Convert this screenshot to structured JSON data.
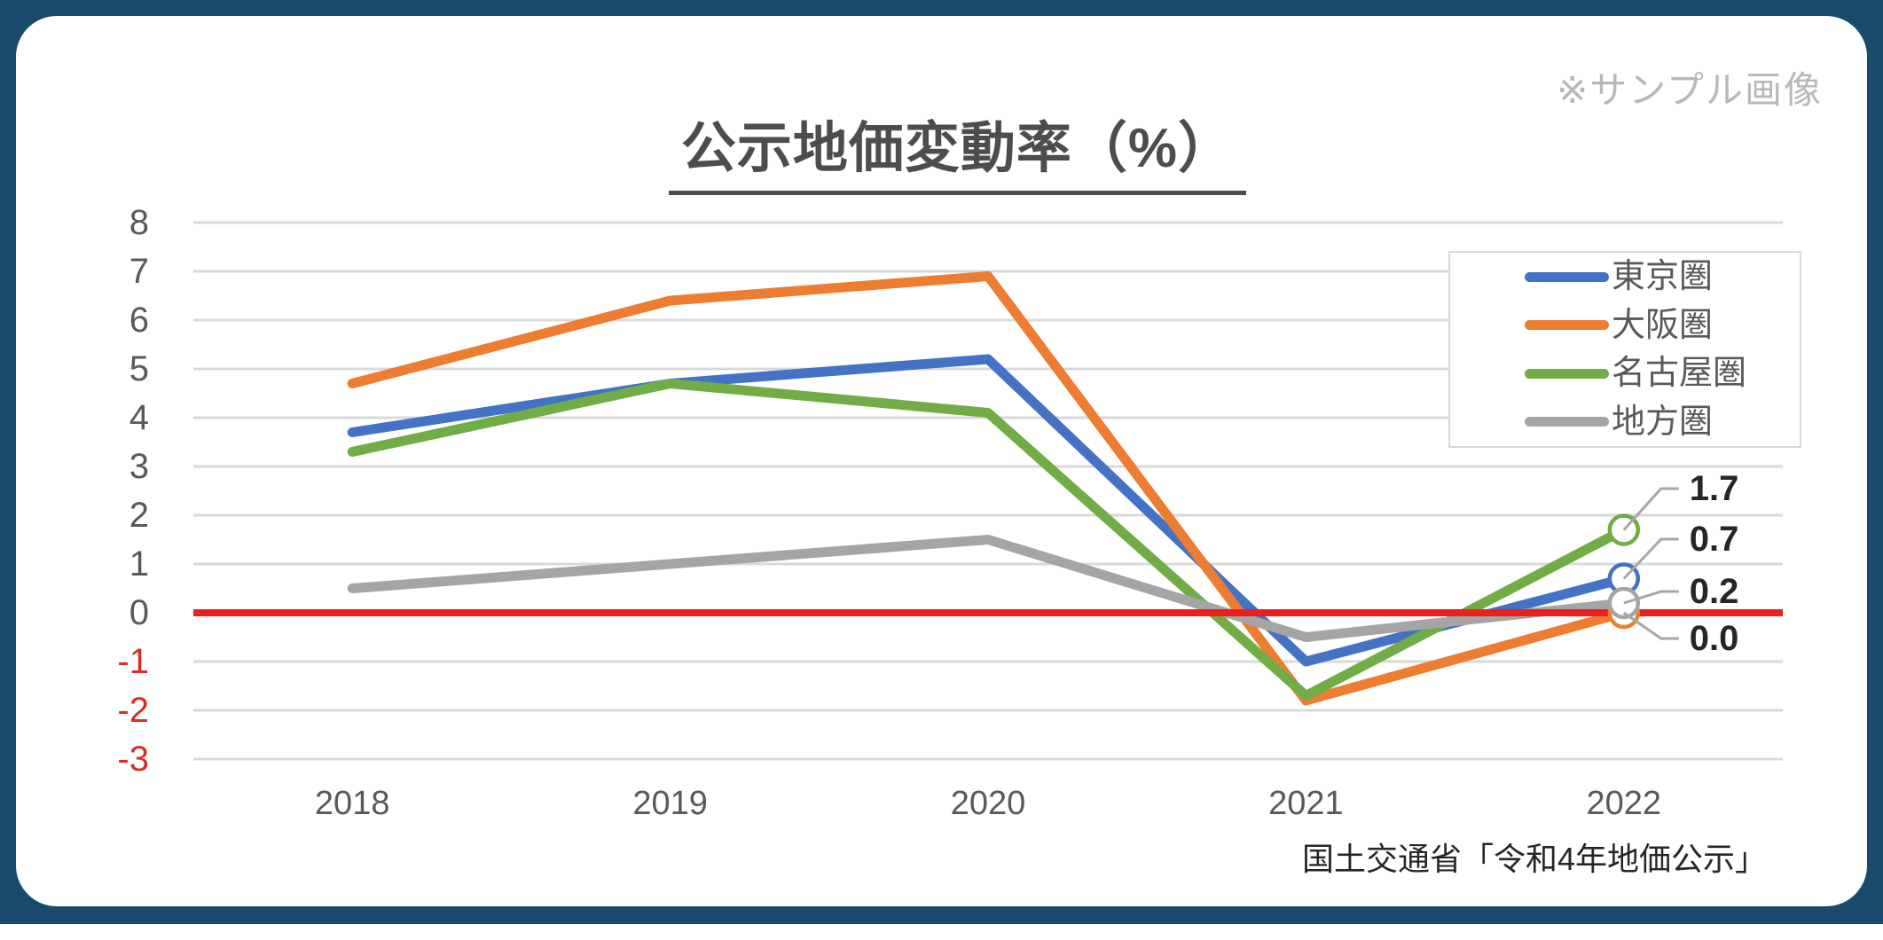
{
  "frame": {
    "border_color": "#174A6B",
    "panel_color": "#FFFFFF"
  },
  "watermark": {
    "text": "※サンプル画像",
    "color": "#B8B8B8"
  },
  "title": {
    "text": "公示地価変動率（%）",
    "color": "#4D4D4D"
  },
  "source": {
    "text": "国土交通省「令和4年地価公示」",
    "color": "#262626"
  },
  "chart_data": {
    "type": "line",
    "title": "公示地価変動率（%）",
    "xlabel": "",
    "ylabel": "",
    "categories": [
      "2018",
      "2019",
      "2020",
      "2021",
      "2022"
    ],
    "series": [
      {
        "name": "東京圏",
        "slug": "tokyo",
        "color": "#4472C4",
        "values": [
          3.7,
          4.7,
          5.2,
          -1.0,
          0.7
        ],
        "end_label": "0.7"
      },
      {
        "name": "大阪圏",
        "slug": "osaka",
        "color": "#ED7D31",
        "values": [
          4.7,
          6.4,
          6.9,
          -1.8,
          0.0
        ],
        "end_label": "0.0"
      },
      {
        "name": "名古屋圏",
        "slug": "nagoya",
        "color": "#70AD47",
        "values": [
          3.3,
          4.7,
          4.1,
          -1.7,
          1.7
        ],
        "end_label": "1.7"
      },
      {
        "name": "地方圏",
        "slug": "regional",
        "color": "#A5A5A5",
        "values": [
          0.5,
          1.0,
          1.5,
          -0.5,
          0.2
        ],
        "end_label": "0.2"
      }
    ],
    "ylim": [
      -3,
      8
    ],
    "yticks": [
      8,
      7,
      6,
      5,
      4,
      3,
      2,
      1,
      0,
      -1,
      -2,
      -3
    ],
    "grid": true,
    "legend_position": "upper-right",
    "zero_line": 0,
    "colors": {
      "gridline": "#D9D9D9",
      "zero_line": "#E8201E",
      "tick": "#595959",
      "negative_tick": "#D92C27",
      "end_label": "#262626",
      "leader_line": "#A6A6A6",
      "marker_fill": "#FFFFFF"
    }
  }
}
